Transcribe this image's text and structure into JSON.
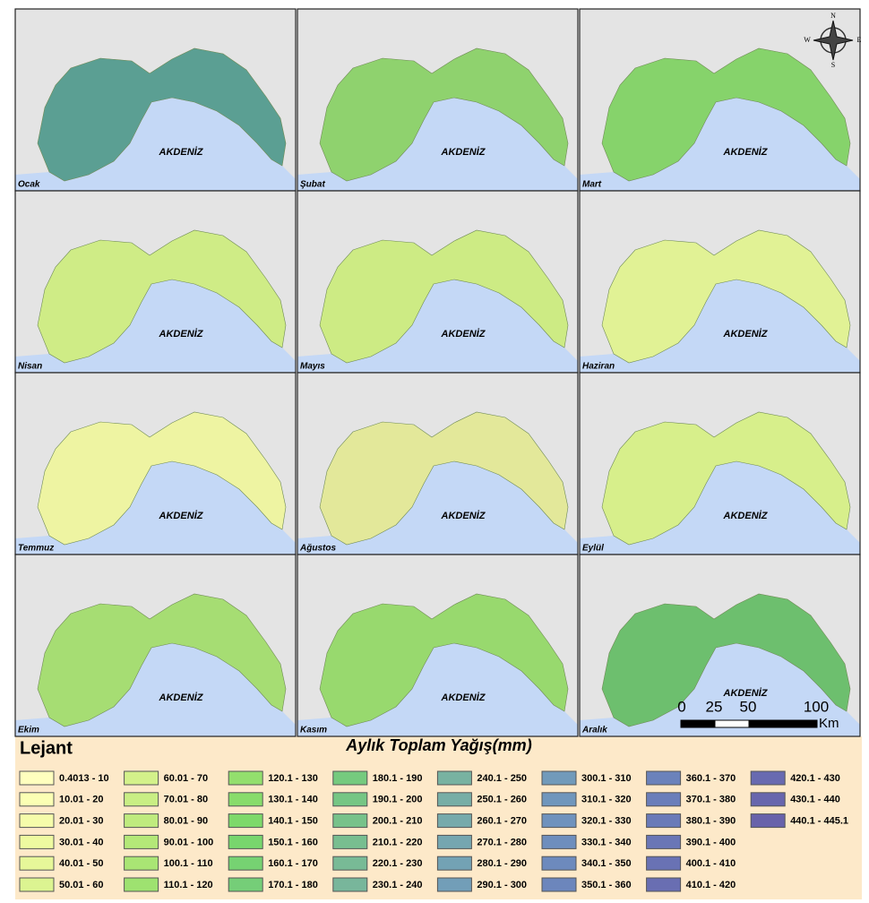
{
  "maps": [
    {
      "label": "Ocak",
      "sea_label": "AKDENİZ",
      "color": "#5b9f93"
    },
    {
      "label": "Şubat",
      "sea_label": "AKDENİZ",
      "color": "#8fd26e"
    },
    {
      "label": "Mart",
      "sea_label": "AKDENİZ",
      "color": "#86d36b"
    },
    {
      "label": "Nisan",
      "sea_label": "AKDENİZ",
      "color": "#cfec86"
    },
    {
      "label": "Mayıs",
      "sea_label": "AKDENİZ",
      "color": "#cdeb84"
    },
    {
      "label": "Haziran",
      "sea_label": "AKDENİZ",
      "color": "#e1f295"
    },
    {
      "label": "Temmuz",
      "sea_label": "AKDENİZ",
      "color": "#eef4a2"
    },
    {
      "label": "Ağustos",
      "sea_label": "AKDENİZ",
      "color": "#e3e89a"
    },
    {
      "label": "Eylül",
      "sea_label": "AKDENİZ",
      "color": "#d7ef8b"
    },
    {
      "label": "Ekim",
      "sea_label": "AKDENİZ",
      "color": "#a6dd73"
    },
    {
      "label": "Kasım",
      "sea_label": "AKDENİZ",
      "color": "#98d96e"
    },
    {
      "label": "Aralık",
      "sea_label": "AKDENİZ",
      "color": "#6dbf6e"
    }
  ],
  "legend": {
    "title": "Lejant",
    "subtitle": "Aylık Toplam Yağış(mm)",
    "items": [
      {
        "label": "0.4013 - 10",
        "color": "#ffffbe"
      },
      {
        "label": "10.01 - 20",
        "color": "#fbffb4"
      },
      {
        "label": "20.01 - 30",
        "color": "#f5fcaa"
      },
      {
        "label": "30.01 - 40",
        "color": "#eefaa0"
      },
      {
        "label": "40.01 - 50",
        "color": "#e6f799"
      },
      {
        "label": "50.01 - 60",
        "color": "#dcf491"
      },
      {
        "label": "60.01 - 70",
        "color": "#d3f18a"
      },
      {
        "label": "70.01 - 80",
        "color": "#c9ee84"
      },
      {
        "label": "80.01 - 90",
        "color": "#bfeb7e"
      },
      {
        "label": "90.01 - 100",
        "color": "#b4e878"
      },
      {
        "label": "100.1 - 110",
        "color": "#a9e574"
      },
      {
        "label": "110.1 - 120",
        "color": "#9ee270"
      },
      {
        "label": "120.1 - 130",
        "color": "#93df6d"
      },
      {
        "label": "130.1 - 140",
        "color": "#88dc6b"
      },
      {
        "label": "140.1 - 150",
        "color": "#7dd96a"
      },
      {
        "label": "150.1 - 160",
        "color": "#78d66d"
      },
      {
        "label": "160.1 - 170",
        "color": "#76d272"
      },
      {
        "label": "170.1 - 180",
        "color": "#75ce78"
      },
      {
        "label": "180.1 - 190",
        "color": "#75ca7e"
      },
      {
        "label": "190.1 - 200",
        "color": "#76c684"
      },
      {
        "label": "200.1 - 210",
        "color": "#77c28a"
      },
      {
        "label": "210.1 - 220",
        "color": "#78be90"
      },
      {
        "label": "220.1 - 230",
        "color": "#78ba96"
      },
      {
        "label": "230.1 - 240",
        "color": "#78b69b"
      },
      {
        "label": "240.1 - 250",
        "color": "#78b2a1"
      },
      {
        "label": "250.1 - 260",
        "color": "#77aea6"
      },
      {
        "label": "260.1 - 270",
        "color": "#76aaab"
      },
      {
        "label": "270.1 - 280",
        "color": "#75a6b0"
      },
      {
        "label": "280.1 - 290",
        "color": "#73a2b4"
      },
      {
        "label": "290.1 - 300",
        "color": "#729eb8"
      },
      {
        "label": "300.1 - 310",
        "color": "#719aba"
      },
      {
        "label": "310.1 - 320",
        "color": "#7096bc"
      },
      {
        "label": "320.1 - 330",
        "color": "#6f92bd"
      },
      {
        "label": "330.1 - 340",
        "color": "#6e8ebd"
      },
      {
        "label": "340.1 - 350",
        "color": "#6d8abd"
      },
      {
        "label": "350.1 - 360",
        "color": "#6c86bc"
      },
      {
        "label": "360.1 - 370",
        "color": "#6b82bb"
      },
      {
        "label": "370.1 - 380",
        "color": "#6b7eba"
      },
      {
        "label": "380.1 - 390",
        "color": "#6a7ab8"
      },
      {
        "label": "390.1 - 400",
        "color": "#6a76b6"
      },
      {
        "label": "400.1 - 410",
        "color": "#6972b4"
      },
      {
        "label": "410.1 - 420",
        "color": "#696eb2"
      },
      {
        "label": "420.1 - 430",
        "color": "#686ab0"
      },
      {
        "label": "430.1 - 440",
        "color": "#6866ad"
      },
      {
        "label": "440.1 - 445.1",
        "color": "#6862aa"
      }
    ]
  },
  "scale_bar": {
    "labels": [
      "0",
      "25",
      "50",
      "100"
    ],
    "unit": "Km"
  },
  "compass": {
    "north": "N",
    "west": "W",
    "east": "E",
    "south": "S"
  }
}
